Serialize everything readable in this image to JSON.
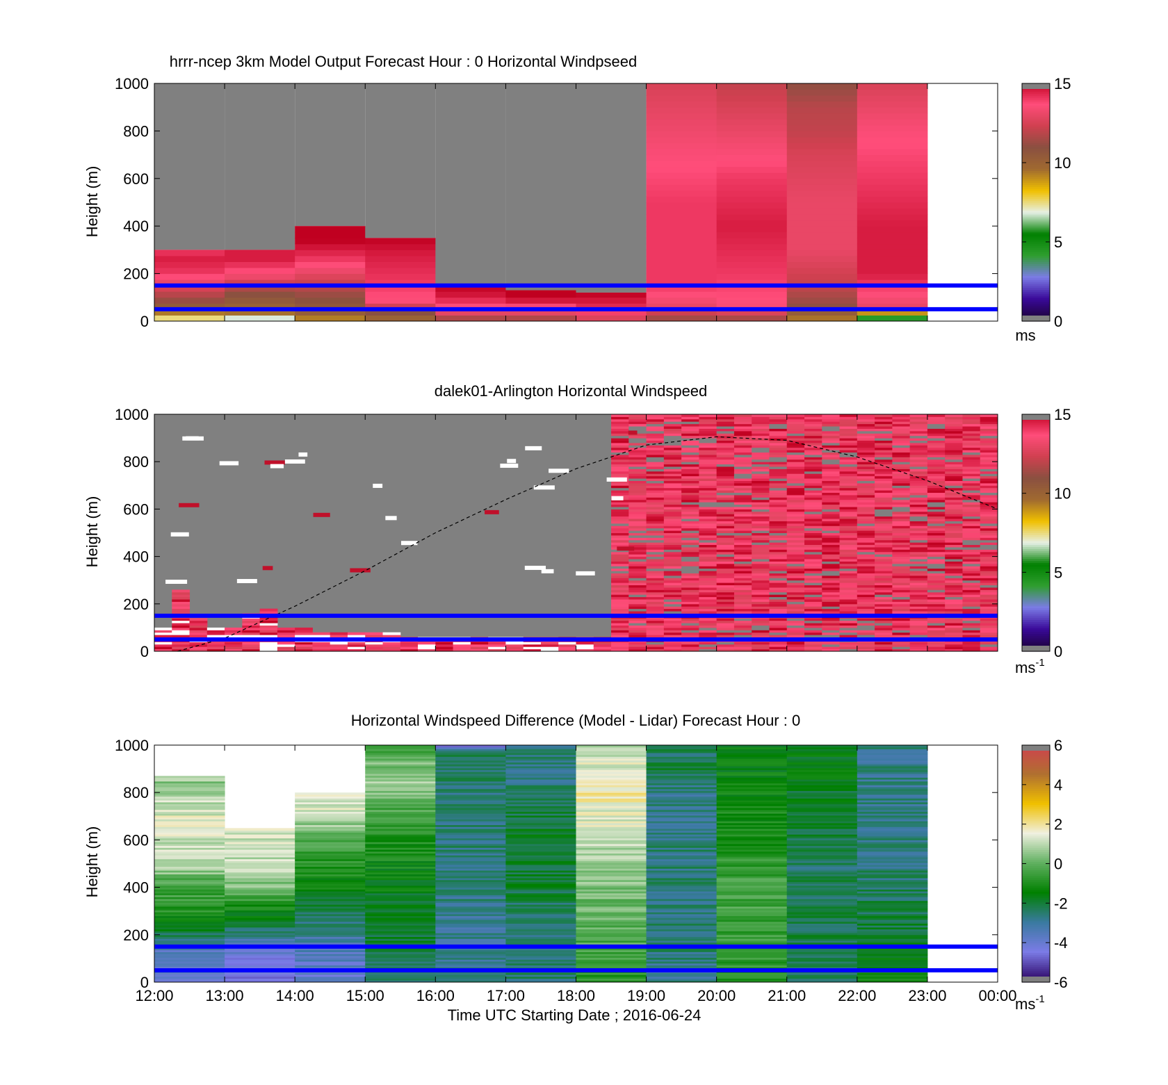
{
  "figure": {
    "xlabel": "Time UTC  Starting Date ; 2016-06-24",
    "x_ticks": [
      "12:00",
      "13:00",
      "14:00",
      "15:00",
      "16:00",
      "17:00",
      "18:00",
      "19:00",
      "20:00",
      "21:00",
      "22:00",
      "23:00",
      "00:00"
    ]
  },
  "colors": {
    "missing": "#808080",
    "overlay_line": "#0000ff",
    "speed_colormap": [
      "#1a0033",
      "#3a0a99",
      "#7b7be6",
      "#2f9e2f",
      "#008000",
      "#e6f0e6",
      "#f0c000",
      "#a06a30",
      "#8a5040",
      "#d04050",
      "#ff4d7a",
      "#c00020"
    ],
    "diff_colormap": [
      "#2a0060",
      "#7b7be6",
      "#3a7aa0",
      "#008000",
      "#60b060",
      "#f0f0e0",
      "#f0c000",
      "#b07030",
      "#d04050"
    ]
  },
  "chart_data": [
    {
      "id": "model",
      "type": "heatmap",
      "title": "hrrr-ncep 3km Model Output   Forecast Hour : 0 Horizontal Windpseed",
      "ylabel": "Height (m)",
      "ylim": [
        0,
        1000
      ],
      "y_ticks": [
        "0",
        "200",
        "400",
        "600",
        "800",
        "1000"
      ],
      "x_start_hour": 12,
      "x_end_hour": 24,
      "colorbar": {
        "range": [
          0,
          15
        ],
        "ticks": [
          "0",
          "5",
          "10",
          "15"
        ],
        "unit": "ms"
      },
      "overlay_lines_m": [
        50,
        150
      ],
      "columns": [
        {
          "hour": 12,
          "top": 300,
          "profile": [
            [
              0,
              6.5
            ],
            [
              20,
              8
            ],
            [
              40,
              9.5
            ],
            [
              80,
              11
            ],
            [
              140,
              12.5
            ],
            [
              200,
              14
            ],
            [
              260,
              14.5
            ],
            [
              300,
              14
            ]
          ]
        },
        {
          "hour": 13,
          "top": 300,
          "profile": [
            [
              0,
              3
            ],
            [
              20,
              9
            ],
            [
              60,
              10
            ],
            [
              120,
              11
            ],
            [
              200,
              13.5
            ],
            [
              260,
              14.5
            ],
            [
              300,
              14.5
            ]
          ]
        },
        {
          "hour": 14,
          "top": 400,
          "profile": [
            [
              0,
              8
            ],
            [
              20,
              10
            ],
            [
              100,
              11
            ],
            [
              180,
              12.5
            ],
            [
              260,
              14
            ],
            [
              340,
              15
            ],
            [
              400,
              15
            ]
          ]
        },
        {
          "hour": 15,
          "top": 350,
          "profile": [
            [
              0,
              9.5
            ],
            [
              40,
              11
            ],
            [
              80,
              13.5
            ],
            [
              160,
              14
            ],
            [
              280,
              14.5
            ],
            [
              350,
              15
            ]
          ]
        },
        {
          "hour": 16,
          "top": 150,
          "profile": [
            [
              0,
              11
            ],
            [
              40,
              13
            ],
            [
              100,
              14.5
            ],
            [
              150,
              15
            ]
          ]
        },
        {
          "hour": 17,
          "top": 130,
          "profile": [
            [
              0,
              11
            ],
            [
              40,
              13
            ],
            [
              100,
              15
            ],
            [
              130,
              15
            ]
          ]
        },
        {
          "hour": 18,
          "top": 120,
          "profile": [
            [
              0,
              12
            ],
            [
              40,
              14
            ],
            [
              120,
              15
            ]
          ]
        },
        {
          "hour": 19,
          "top": 1000,
          "profile": [
            [
              0,
              11
            ],
            [
              60,
              13
            ],
            [
              150,
              14
            ],
            [
              300,
              14
            ],
            [
              500,
              14
            ],
            [
              700,
              13.5
            ],
            [
              850,
              13
            ],
            [
              1000,
              12.5
            ]
          ]
        },
        {
          "hour": 20,
          "top": 1000,
          "profile": [
            [
              0,
              11
            ],
            [
              60,
              13.5
            ],
            [
              200,
              14
            ],
            [
              400,
              14.5
            ],
            [
              600,
              14
            ],
            [
              800,
              13
            ],
            [
              900,
              12.5
            ],
            [
              1000,
              12
            ]
          ]
        },
        {
          "hour": 21,
          "top": 1000,
          "profile": [
            [
              0,
              9
            ],
            [
              60,
              11
            ],
            [
              150,
              12
            ],
            [
              300,
              13
            ],
            [
              500,
              13
            ],
            [
              700,
              12.5
            ],
            [
              800,
              12
            ],
            [
              900,
              11.8
            ],
            [
              1000,
              11
            ]
          ]
        },
        {
          "hour": 22,
          "top": 1000,
          "profile": [
            [
              0,
              2
            ],
            [
              60,
              13
            ],
            [
              200,
              14.5
            ],
            [
              400,
              14.5
            ],
            [
              600,
              14
            ],
            [
              800,
              13.5
            ],
            [
              900,
              13
            ],
            [
              1000,
              12.5
            ]
          ]
        }
      ]
    },
    {
      "id": "lidar",
      "type": "heatmap",
      "title": "dalek01-Arlington  Horizontal Windspeed",
      "ylabel": "Height (m)",
      "ylim": [
        0,
        1000
      ],
      "y_ticks": [
        "0",
        "200",
        "400",
        "600",
        "800",
        "1000"
      ],
      "x_start_hour": 12,
      "x_end_hour": 24,
      "colorbar": {
        "range": [
          0,
          15
        ],
        "ticks": [
          "0",
          "5",
          "10",
          "15"
        ],
        "unit": "ms",
        "unit_sup": "-1"
      },
      "overlay_lines_m": [
        50,
        150
      ],
      "boundary_layer_curve": [
        [
          12.33,
          0
        ],
        [
          13,
          55
        ],
        [
          14,
          190
        ],
        [
          15,
          340
        ],
        [
          16,
          500
        ],
        [
          17,
          640
        ],
        [
          18,
          770
        ],
        [
          19,
          870
        ],
        [
          20,
          905
        ],
        [
          21,
          890
        ],
        [
          22,
          820
        ],
        [
          23,
          720
        ],
        [
          24,
          600
        ]
      ],
      "data_top_m": [
        100,
        260,
        140,
        100,
        100,
        160,
        180,
        100,
        100,
        80,
        80,
        80,
        80,
        80,
        60,
        60,
        60,
        60,
        60,
        60,
        60,
        60,
        60,
        60,
        60,
        60,
        1000,
        1000,
        1000,
        1000,
        1000,
        1000,
        1000,
        1000,
        1000,
        1000,
        1000,
        1000,
        1000,
        1000,
        1000,
        1000,
        1000,
        1000,
        1000,
        1000,
        1000,
        1000
      ]
    },
    {
      "id": "diff",
      "type": "heatmap",
      "title": "Horizontal Windspeed Difference (Model - Lidar) Forecast Hour : 0",
      "ylabel": "Height (m)",
      "ylim": [
        0,
        1000
      ],
      "y_ticks": [
        "0",
        "200",
        "400",
        "600",
        "800",
        "1000"
      ],
      "x_start_hour": 12,
      "x_end_hour": 24,
      "colorbar": {
        "range": [
          -6,
          6
        ],
        "ticks": [
          "-6",
          "-4",
          "-2",
          "0",
          "2",
          "4",
          "6"
        ],
        "unit": "ms",
        "unit_sup": "-1"
      },
      "overlay_lines_m": [
        50,
        150
      ],
      "columns": [
        {
          "hour": 12,
          "top": 870,
          "profile": [
            [
              0,
              -4
            ],
            [
              150,
              -3.5
            ],
            [
              200,
              -2.2
            ],
            [
              300,
              -1
            ],
            [
              420,
              -0.3
            ],
            [
              500,
              1
            ],
            [
              700,
              1.3
            ],
            [
              860,
              0.5
            ]
          ]
        },
        {
          "hour": 13,
          "top": 650,
          "profile": [
            [
              0,
              -4.5
            ],
            [
              150,
              -4
            ],
            [
              200,
              -2.5
            ],
            [
              300,
              -1.5
            ],
            [
              400,
              0.3
            ],
            [
              500,
              1
            ],
            [
              650,
              1.2
            ]
          ]
        },
        {
          "hour": 14,
          "top": 800,
          "profile": [
            [
              0,
              -4
            ],
            [
              150,
              -3.5
            ],
            [
              260,
              -2.4
            ],
            [
              400,
              -1.5
            ],
            [
              560,
              -0.5
            ],
            [
              700,
              1
            ],
            [
              800,
              1.5
            ]
          ]
        },
        {
          "hour": 15,
          "top": 1000,
          "profile": [
            [
              0,
              -2.5
            ],
            [
              200,
              -2
            ],
            [
              400,
              -1.6
            ],
            [
              600,
              -1
            ],
            [
              750,
              -0.2
            ],
            [
              850,
              0.8
            ],
            [
              1000,
              -0.5
            ]
          ]
        },
        {
          "hour": 16,
          "top": 1000,
          "profile": [
            [
              0,
              -2.8
            ],
            [
              200,
              -3
            ],
            [
              500,
              -2.6
            ],
            [
              800,
              -2.6
            ],
            [
              960,
              -2.2
            ],
            [
              1000,
              -4.5
            ]
          ]
        },
        {
          "hour": 17,
          "top": 1000,
          "profile": [
            [
              0,
              -2.5
            ],
            [
              200,
              -2.8
            ],
            [
              400,
              -2
            ],
            [
              600,
              -1.8
            ],
            [
              800,
              -2.5
            ],
            [
              1000,
              -2.8
            ]
          ]
        },
        {
          "hour": 18,
          "top": 1000,
          "profile": [
            [
              0,
              -1
            ],
            [
              200,
              -0.2
            ],
            [
              400,
              0.3
            ],
            [
              600,
              1
            ],
            [
              800,
              1.8
            ],
            [
              1000,
              1
            ]
          ]
        },
        {
          "hour": 19,
          "top": 1000,
          "profile": [
            [
              0,
              -2.8
            ],
            [
              200,
              -2.6
            ],
            [
              500,
              -2.6
            ],
            [
              800,
              -2.8
            ],
            [
              900,
              -2.2
            ],
            [
              1000,
              -2.5
            ]
          ]
        },
        {
          "hour": 20,
          "top": 1000,
          "profile": [
            [
              0,
              -1
            ],
            [
              200,
              -0.6
            ],
            [
              400,
              -0.4
            ],
            [
              600,
              -1
            ],
            [
              800,
              -1.4
            ],
            [
              1000,
              -1.6
            ]
          ]
        },
        {
          "hour": 21,
          "top": 1000,
          "profile": [
            [
              0,
              -2.6
            ],
            [
              200,
              -2.2
            ],
            [
              500,
              -2.4
            ],
            [
              800,
              -1.8
            ],
            [
              1000,
              -1.6
            ]
          ]
        },
        {
          "hour": 22,
          "top": 1000,
          "profile": [
            [
              0,
              -1.2
            ],
            [
              200,
              -2
            ],
            [
              500,
              -2.6
            ],
            [
              800,
              -2.8
            ],
            [
              1000,
              -2.8
            ]
          ]
        }
      ]
    }
  ]
}
